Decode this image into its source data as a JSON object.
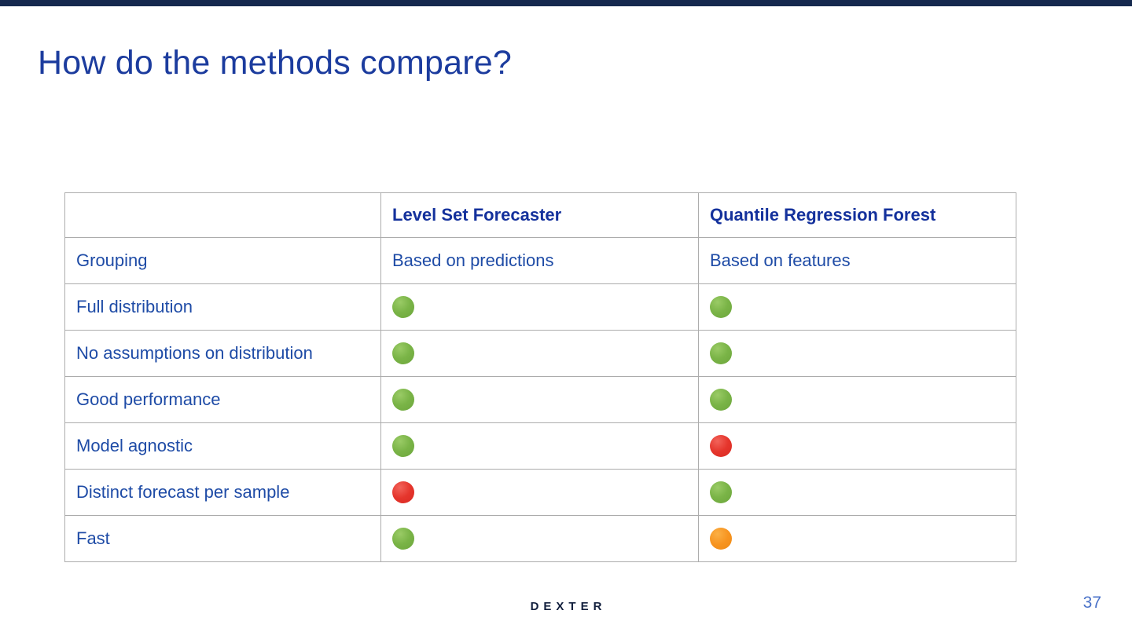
{
  "slide": {
    "title": "How do the methods compare?",
    "footer_logo": "DEXTER",
    "page_number": "37"
  },
  "colors": {
    "top_bar_navy": "#15294E",
    "title_blue": "#1C3C9E",
    "header_blue": "#14319C",
    "body_blue": "#1E4BA6",
    "table_border_gray": "#ACACAC",
    "dot_green": "#7AB447",
    "dot_red": "#E5352C",
    "dot_orange": "#F79420",
    "logo_navy": "#13203E",
    "page_number_blue": "#4A72C8"
  },
  "table": {
    "columns": [
      "",
      "Level Set Forecaster",
      "Quantile Regression Forest"
    ],
    "rows": [
      {
        "label": "Grouping",
        "lsf": {
          "type": "text",
          "value": "Based on predictions"
        },
        "qrf": {
          "type": "text",
          "value": "Based on features"
        }
      },
      {
        "label": "Full distribution",
        "lsf": {
          "type": "dot",
          "value": "green"
        },
        "qrf": {
          "type": "dot",
          "value": "green"
        }
      },
      {
        "label": "No assumptions on distribution",
        "lsf": {
          "type": "dot",
          "value": "green"
        },
        "qrf": {
          "type": "dot",
          "value": "green"
        }
      },
      {
        "label": "Good performance",
        "lsf": {
          "type": "dot",
          "value": "green"
        },
        "qrf": {
          "type": "dot",
          "value": "green"
        }
      },
      {
        "label": "Model agnostic",
        "lsf": {
          "type": "dot",
          "value": "green"
        },
        "qrf": {
          "type": "dot",
          "value": "red"
        }
      },
      {
        "label": "Distinct forecast per sample",
        "lsf": {
          "type": "dot",
          "value": "red"
        },
        "qrf": {
          "type": "dot",
          "value": "green"
        }
      },
      {
        "label": "Fast",
        "lsf": {
          "type": "dot",
          "value": "green"
        },
        "qrf": {
          "type": "dot",
          "value": "orange"
        }
      }
    ]
  }
}
